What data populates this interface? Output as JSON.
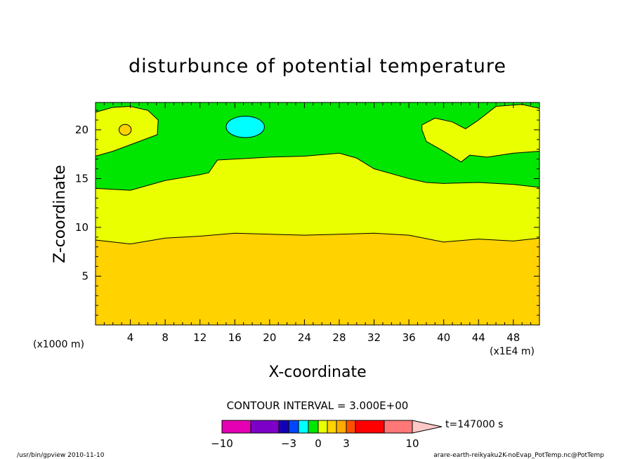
{
  "chart_data": {
    "type": "contour",
    "title": "disturbunce of potential temperature",
    "xlabel": "X-coordinate",
    "ylabel": "Z-coordinate",
    "x_unit_left": "(x1000 m)",
    "x_unit_right": "(x1E4 m)",
    "xlim": [
      0,
      51
    ],
    "ylim": [
      0,
      22.8
    ],
    "x_ticks": [
      4,
      8,
      12,
      16,
      20,
      24,
      28,
      32,
      36,
      40,
      44,
      48
    ],
    "y_ticks": [
      5,
      10,
      15,
      20
    ],
    "contour_interval_text": "CONTOUR INTERVAL = 3.000E+00",
    "time_label": "t=147000 s",
    "colorbar": {
      "colors": [
        "#e600b4",
        "#7d00c8",
        "#1400b4",
        "#0046ff",
        "#00ffff",
        "#00e600",
        "#eaff00",
        "#ffd200",
        "#ffaa00",
        "#ff5000",
        "#ff0000",
        "#ff7878",
        "#ffc8c8"
      ],
      "tick_labels": [
        {
          "label": "−10",
          "value": -10
        },
        {
          "label": "−3",
          "value": -3
        },
        {
          "label": "0",
          "value": 0
        },
        {
          "label": "3",
          "value": 3
        },
        {
          "label": "10",
          "value": 10
        }
      ]
    },
    "regions": [
      {
        "name": "orange",
        "color": "#ffd200",
        "boundary_x": [
          0,
          4,
          8,
          12,
          16,
          20,
          24,
          28,
          32,
          36,
          40,
          44,
          48,
          51
        ],
        "boundary_z": [
          8.7,
          8.3,
          8.9,
          9.1,
          9.4,
          9.3,
          9.2,
          9.3,
          9.4,
          9.2,
          8.5,
          8.8,
          8.6,
          8.9
        ]
      },
      {
        "name": "yellow",
        "color": "#eaff00",
        "boundary_x": [
          0,
          4,
          8,
          12,
          13,
          14,
          16,
          20,
          24,
          28,
          30,
          32,
          36,
          38,
          40,
          44,
          48,
          51
        ],
        "boundary_z": [
          14.0,
          13.8,
          14.8,
          15.4,
          15.6,
          16.9,
          17.0,
          17.2,
          17.3,
          17.6,
          17.1,
          16.0,
          15.0,
          14.6,
          14.5,
          14.6,
          14.4,
          14.1
        ]
      },
      {
        "name": "green",
        "color": "#00e600",
        "boundary_x": [
          0,
          51
        ],
        "boundary_z": [
          22.8,
          22.8
        ]
      }
    ],
    "blobs": [
      {
        "name": "yellow-top-left",
        "color": "#eaff00",
        "x": [
          0,
          2,
          4,
          6,
          7.2,
          7.1,
          5,
          2,
          0
        ],
        "z": [
          21.8,
          22.3,
          22.4,
          22.0,
          21.0,
          19.5,
          18.8,
          17.8,
          17.3
        ]
      },
      {
        "name": "orange-spot",
        "color": "#ffd200",
        "center": [
          3.4,
          20.0
        ],
        "radius": [
          0.7,
          0.55
        ]
      },
      {
        "name": "cyan-spot",
        "color": "#00ffff",
        "center": [
          17.2,
          20.3
        ],
        "radius": [
          2.2,
          1.1
        ]
      },
      {
        "name": "yellow-top-right",
        "color": "#eaff00",
        "x": [
          37.5,
          39,
          41,
          42.5,
          44,
          46,
          49,
          51,
          51,
          48,
          45,
          43,
          42,
          40,
          38,
          37.5
        ],
        "z": [
          20.5,
          21.2,
          20.8,
          20.1,
          21.0,
          22.4,
          22.6,
          22.2,
          17.8,
          17.6,
          17.2,
          17.4,
          16.7,
          17.8,
          18.8,
          20.0
        ]
      }
    ]
  },
  "footer": {
    "left": "/usr/bin/gpview  2010-11-10",
    "right": "arare-earth-reikyaku2K-noEvap_PotTemp.nc@PotTemp"
  }
}
